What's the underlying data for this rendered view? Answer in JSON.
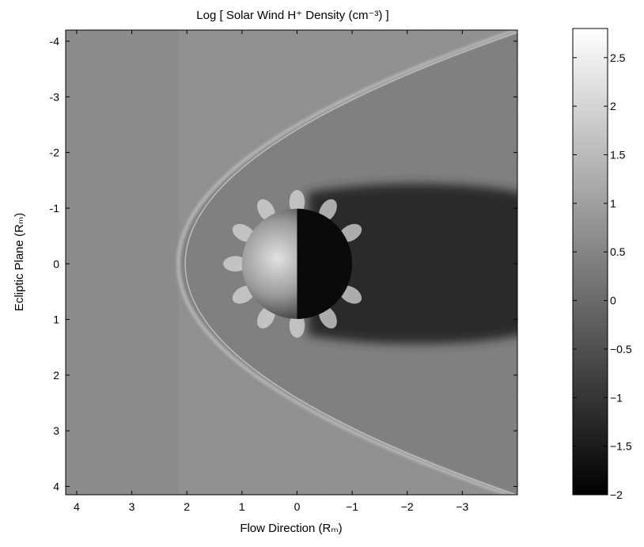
{
  "chart_data": {
    "type": "heatmap",
    "title": "Log [ Solar Wind H⁺ Density (cm⁻³) ]",
    "xlabel": "Flow Direction (Rₘ)",
    "ylabel": "Ecliptic Plane (Rₘ)",
    "x_axis": {
      "reversed": true,
      "lim": [
        4.2,
        -4.0
      ],
      "ticks": [
        4,
        3,
        2,
        1,
        0,
        -1,
        -2,
        -3
      ],
      "tick_labels": [
        "4",
        "3",
        "2",
        "1",
        "0",
        "−1",
        "−2",
        "−3"
      ]
    },
    "y_axis": {
      "lim": [
        -4.2,
        4.15
      ],
      "ticks": [
        -4,
        -3,
        -2,
        -1,
        0,
        1,
        2,
        3,
        4
      ],
      "tick_labels": [
        "-4",
        "-3",
        "-2",
        "-1",
        "0",
        "1",
        "2",
        "3",
        "4"
      ]
    },
    "colorbar": {
      "colormap": "gray",
      "lim": [
        -2,
        2.8
      ],
      "ticks": [
        2.5,
        2,
        1.5,
        1,
        0.5,
        0,
        -0.5,
        -1,
        -1.5,
        -2
      ],
      "tick_labels": [
        "2.5",
        "2",
        "1.5",
        "1",
        "0.5",
        "0",
        "−0.5",
        "−1",
        "−1.5",
        "−2"
      ]
    },
    "background_value": 0.2,
    "planet": {
      "center": [
        0,
        0
      ],
      "radius": 1.0
    },
    "bow_shock": {
      "nose_x": 2.15,
      "flank_halfwidth_at_x_neg4": 4.2
    },
    "grid": false
  }
}
